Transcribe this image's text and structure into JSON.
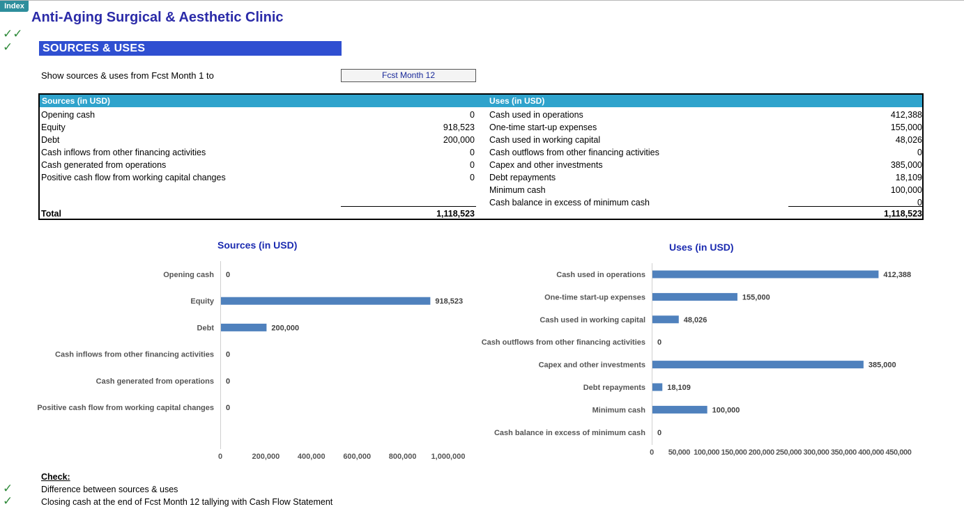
{
  "index_button": "Index",
  "title": "Anti-Aging Surgical & Aesthetic Clinic",
  "section_title": "SOURCES & USES",
  "period": {
    "label": "Show sources & uses from Fcst Month 1 to",
    "selected": "Fcst Month 12"
  },
  "table": {
    "sources_header": "Sources (in USD)",
    "uses_header": "Uses (in USD)",
    "sources": [
      {
        "label": "Opening cash",
        "value": "0"
      },
      {
        "label": "Equity",
        "value": "918,523"
      },
      {
        "label": "Debt",
        "value": "200,000"
      },
      {
        "label": "Cash inflows from other financing activities",
        "value": "0"
      },
      {
        "label": "Cash generated from operations",
        "value": "0"
      },
      {
        "label": "Positive cash flow from working capital changes",
        "value": "0"
      }
    ],
    "uses": [
      {
        "label": "Cash used in operations",
        "value": "412,388"
      },
      {
        "label": "One-time start-up expenses",
        "value": "155,000"
      },
      {
        "label": "Cash used in working capital",
        "value": "48,026"
      },
      {
        "label": "Cash outflows from other  financing activities",
        "value": "0"
      },
      {
        "label": "Capex and other investments",
        "value": "385,000"
      },
      {
        "label": "Debt repayments",
        "value": "18,109"
      },
      {
        "label": "Minimum cash",
        "value": "100,000"
      },
      {
        "label": "Cash balance in excess of minimum cash",
        "value": "0"
      }
    ],
    "total_label": "Total",
    "sources_total": "1,118,523",
    "uses_total": "1,118,523"
  },
  "chart_data": [
    {
      "type": "bar",
      "orientation": "horizontal",
      "title": "Sources (in USD)",
      "categories": [
        "Opening cash",
        "Equity",
        "Debt",
        "Cash inflows from other financing activities",
        "Cash generated from operations",
        "Positive cash flow from working capital changes"
      ],
      "values": [
        0,
        918523,
        200000,
        0,
        0,
        0
      ],
      "value_labels": [
        "0",
        "918,523",
        "200,000",
        "0",
        "0",
        "0"
      ],
      "xlim": [
        0,
        1000000
      ],
      "ticks": [
        0,
        200000,
        400000,
        600000,
        800000,
        1000000
      ],
      "tick_labels": [
        "0",
        "200,000",
        "400,000",
        "600,000",
        "800,000",
        "1,000,000"
      ],
      "bar_color": "#4f81bd",
      "grid": false
    },
    {
      "type": "bar",
      "orientation": "horizontal",
      "title": "Uses (in USD)",
      "categories": [
        "Cash used in operations",
        "One-time start-up expenses",
        "Cash used in working capital",
        "Cash outflows from other  financing activities",
        "Capex and other investments",
        "Debt repayments",
        "Minimum cash",
        "Cash balance in excess of minimum cash"
      ],
      "values": [
        412388,
        155000,
        48026,
        0,
        385000,
        18109,
        100000,
        0
      ],
      "value_labels": [
        "412,388",
        "155,000",
        "48,026",
        "0",
        "385,000",
        "18,109",
        "100,000",
        "0"
      ],
      "xlim": [
        0,
        450000
      ],
      "ticks": [
        0,
        50000,
        100000,
        150000,
        200000,
        250000,
        300000,
        350000,
        400000,
        450000
      ],
      "tick_labels": [
        "0",
        "50,000",
        "100,000",
        "150,000",
        "200,000",
        "250,000",
        "300,000",
        "350,000",
        "400,000",
        "450,000"
      ],
      "bar_color": "#4f81bd",
      "grid": false
    }
  ],
  "checks": {
    "title": "Check:",
    "items": [
      "Difference between sources & uses",
      "Closing cash at the end of Fcst Month 12 tallying with Cash Flow Statement"
    ]
  },
  "colors": {
    "title": "#2b2ba8",
    "section_bar": "#2f4fd1",
    "table_header": "#2fa3cc",
    "bar": "#4f81bd",
    "check": "#2f8a3a"
  }
}
